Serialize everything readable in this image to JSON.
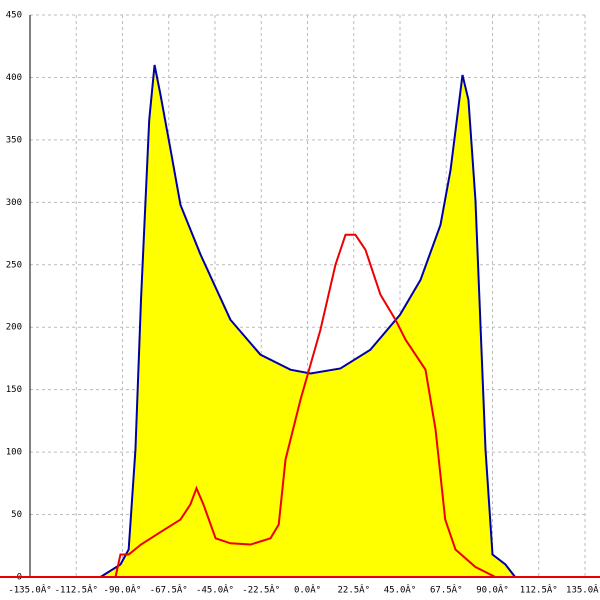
{
  "chart_data": {
    "type": "area-line",
    "xlim": [
      -135,
      135
    ],
    "ylim": [
      0,
      450
    ],
    "xticks": [
      {
        "value": -135,
        "label": "-135.0Â°"
      },
      {
        "value": -112.5,
        "label": "-112.5Â°"
      },
      {
        "value": -90,
        "label": "-90.0Â°"
      },
      {
        "value": -67.5,
        "label": "-67.5Â°"
      },
      {
        "value": -45,
        "label": "-45.0Â°"
      },
      {
        "value": -22.5,
        "label": "-22.5Â°"
      },
      {
        "value": 0,
        "label": "0.0Â°"
      },
      {
        "value": 22.5,
        "label": "22.5Â°"
      },
      {
        "value": 45,
        "label": "45.0Â°"
      },
      {
        "value": 67.5,
        "label": "67.5Â°"
      },
      {
        "value": 90,
        "label": "90.0Â°"
      },
      {
        "value": 112.5,
        "label": "112.5Â°"
      },
      {
        "value": 135,
        "label": "135.0Â°"
      }
    ],
    "yticks": [
      0,
      50,
      100,
      150,
      200,
      250,
      300,
      350,
      400,
      450
    ],
    "grid": true,
    "series": [
      {
        "color": "#0000aa",
        "fill": "#ffff00",
        "x": [
          -100.7,
          -91,
          -87,
          -83.7,
          -81,
          -77,
          -74.4,
          -71.5,
          -66.6,
          -61.8,
          -52,
          -37.5,
          -22.9,
          -8.3,
          1.5,
          16,
          30.6,
          45,
          55,
          64.7,
          69.6,
          75.4,
          78.3,
          81.7,
          86.6,
          90,
          96.3,
          101
        ],
        "values": [
          0,
          10,
          22,
          102,
          222,
          366,
          410,
          386,
          342,
          298,
          258,
          206,
          178,
          166,
          163,
          167,
          182,
          210,
          238,
          282,
          326,
          402,
          382,
          302,
          102,
          18,
          10,
          0
        ]
      },
      {
        "color": "#ee0000",
        "x": [
          -93.4,
          -91,
          -87,
          -81,
          -71.5,
          -61.8,
          -57,
          -54,
          -50.6,
          -44.7,
          -37.5,
          -27.7,
          -18,
          -14,
          -10.7,
          -3.4,
          6.3,
          13.6,
          18.5,
          23.3,
          28.2,
          35.5,
          42.8,
          47.7,
          57.4,
          62.3,
          67,
          72,
          81.7,
          91.4
        ],
        "values": [
          0,
          18,
          18,
          26,
          36,
          46,
          58,
          71,
          58,
          31,
          27,
          26,
          31,
          42,
          94,
          142,
          198,
          250,
          274,
          274,
          262,
          226,
          206,
          190,
          166,
          118,
          46,
          22,
          8,
          0
        ]
      }
    ]
  }
}
